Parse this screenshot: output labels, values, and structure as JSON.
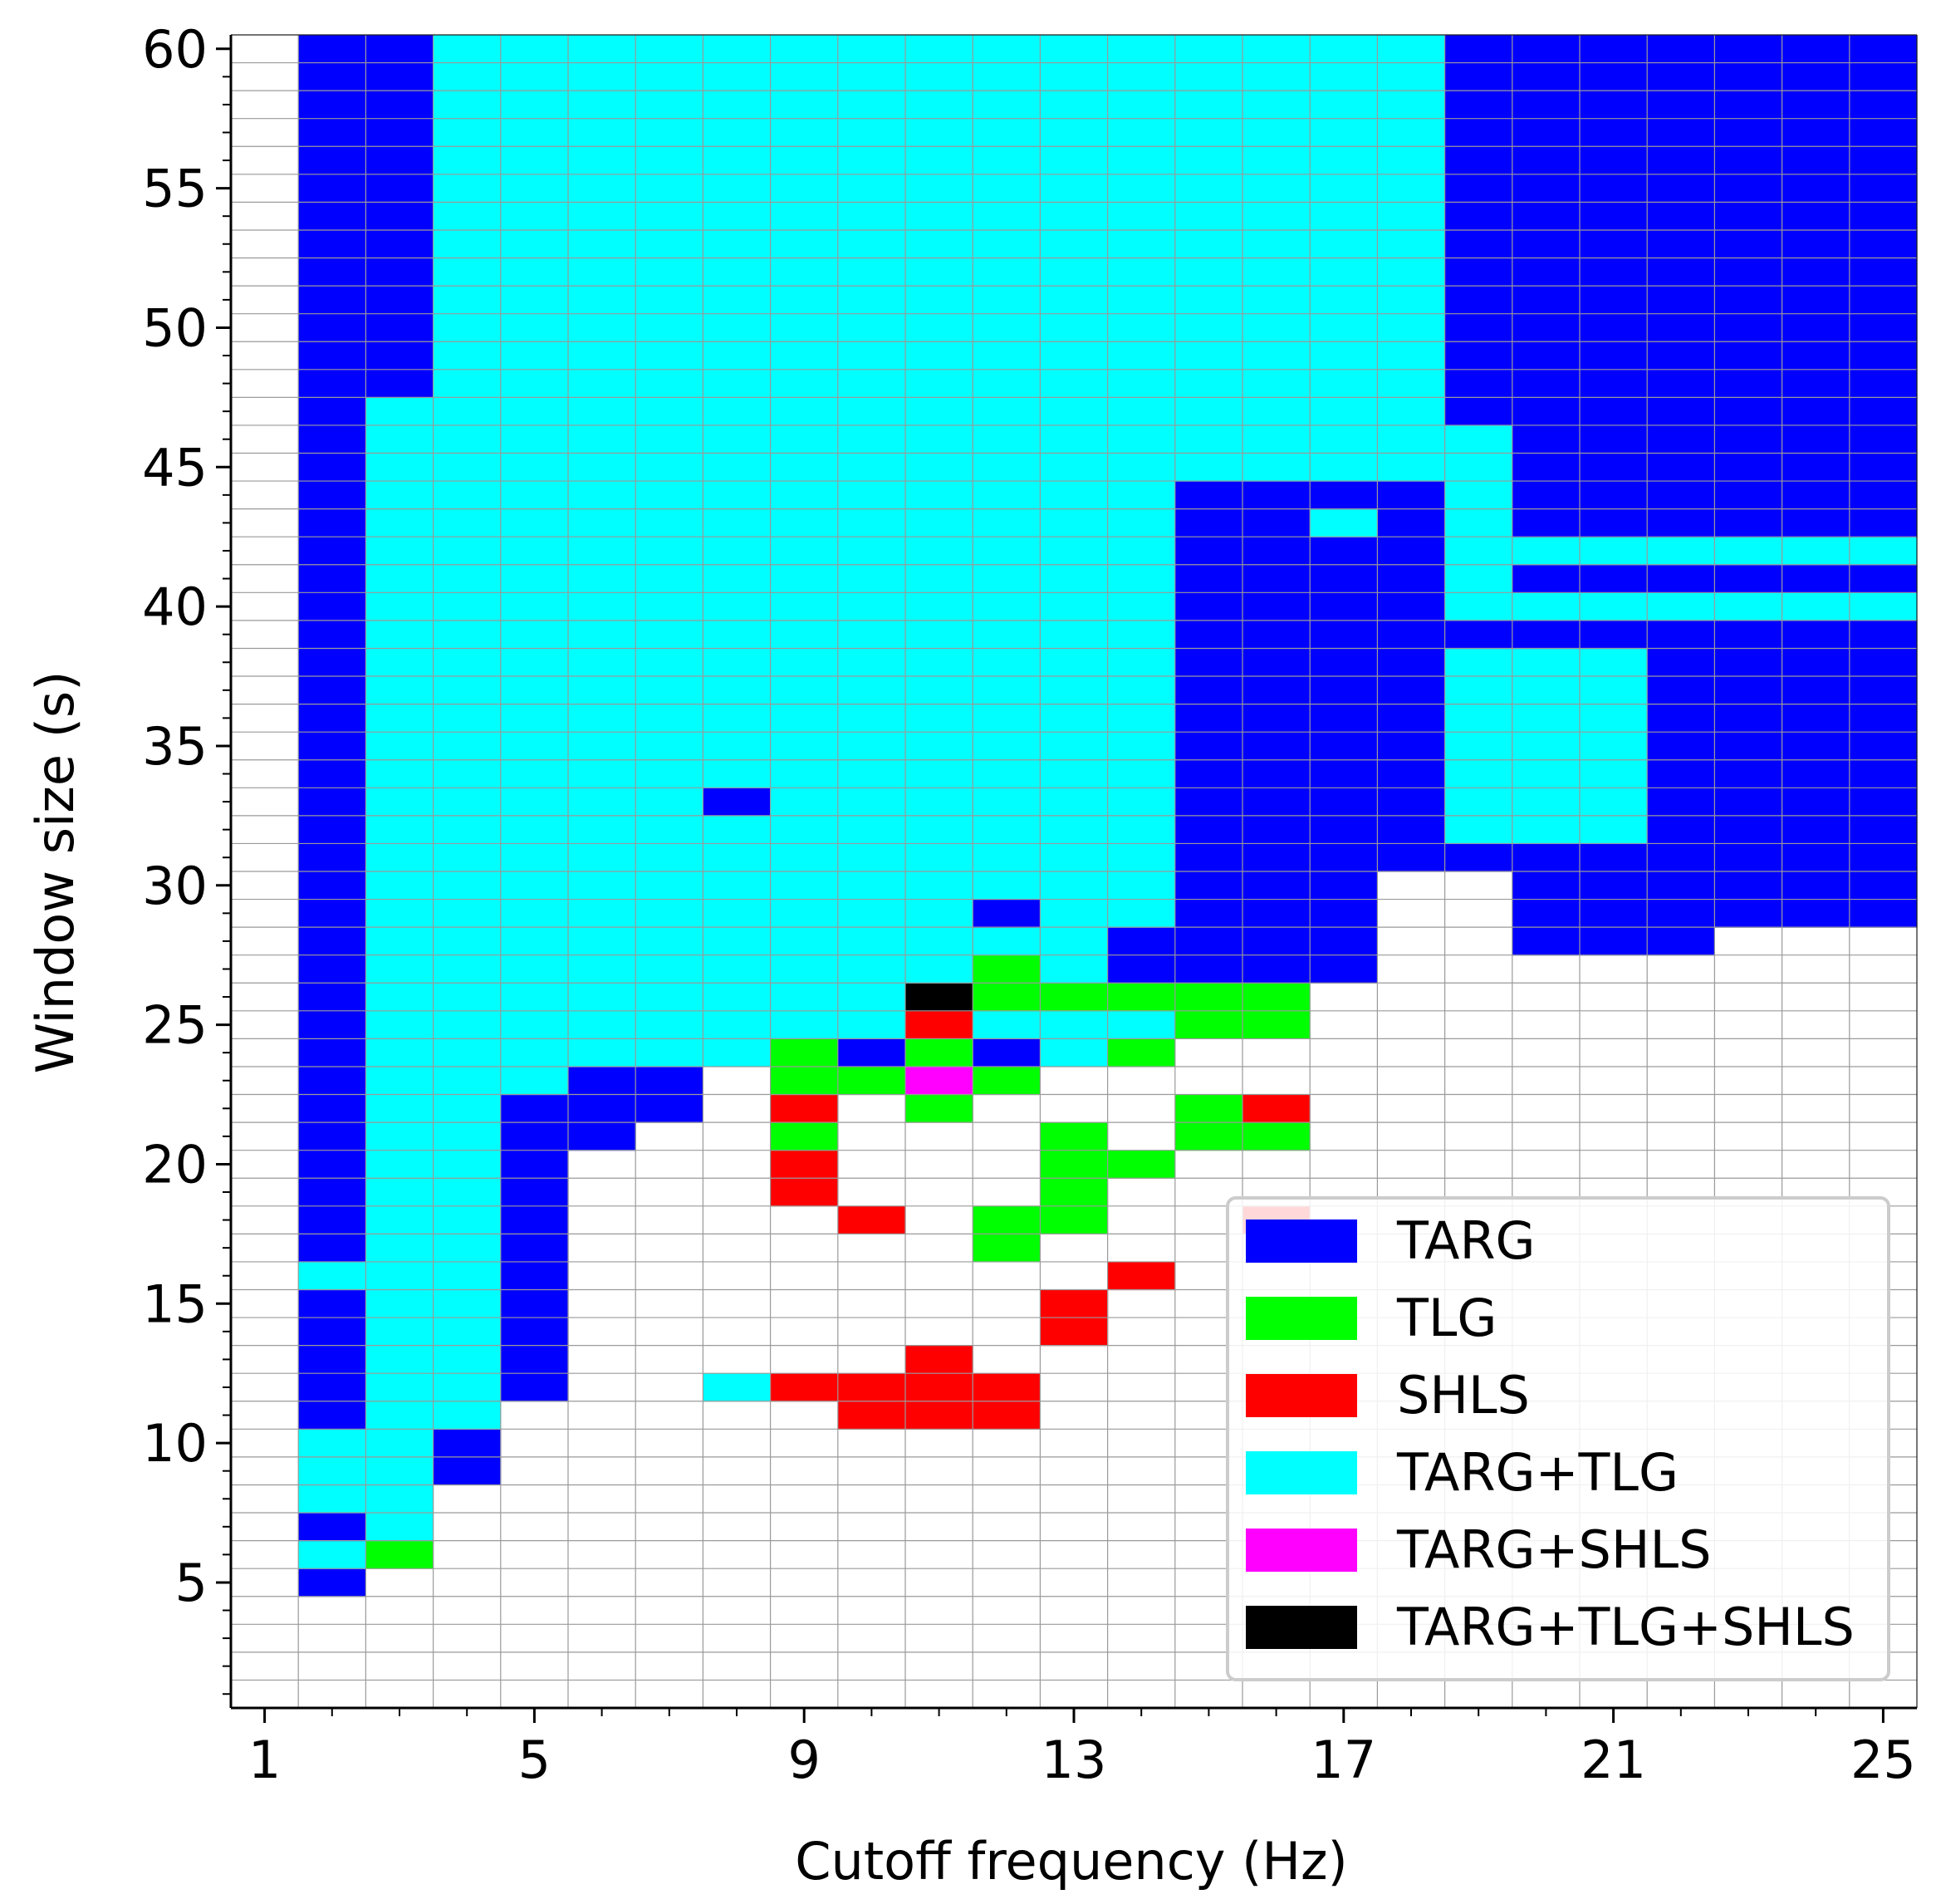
{
  "chart_data": {
    "type": "heatmap",
    "xlabel": "Cutoff frequency (Hz)",
    "ylabel": "Window size (s)",
    "x_ticks": [
      1,
      5,
      9,
      13,
      17,
      21,
      25
    ],
    "y_ticks": [
      5,
      10,
      15,
      20,
      25,
      30,
      35,
      40,
      45,
      50,
      55,
      60
    ],
    "xlim": [
      0.5,
      25.5
    ],
    "ylim": [
      0.5,
      60.5
    ],
    "x_values": [
      1,
      2,
      3,
      4,
      5,
      6,
      7,
      8,
      9,
      10,
      11,
      12,
      13,
      14,
      15,
      16,
      17,
      18,
      19,
      20,
      21,
      22,
      23,
      24,
      25
    ],
    "y_values": "integers 1-60",
    "grid": true,
    "legend_position": "lower-right",
    "categories": [
      {
        "code": 1,
        "label": "TARG",
        "color": "#0000ff"
      },
      {
        "code": 2,
        "label": "TLG",
        "color": "#00ff00"
      },
      {
        "code": 3,
        "label": "SHLS",
        "color": "#ff0000"
      },
      {
        "code": 4,
        "label": "TARG+TLG",
        "color": "#00ffff"
      },
      {
        "code": 5,
        "label": "TARG+SHLS",
        "color": "#ff00ff"
      },
      {
        "code": 6,
        "label": "TARG+TLG+SHLS",
        "color": "#000000"
      }
    ],
    "legend": [
      "TARG",
      "TLG",
      "SHLS",
      "TARG+TLG",
      "TARG+SHLS",
      "TARG+TLG+SHLS"
    ],
    "column_encoding": "one string per cutoff frequency (x = 1..25); character k = window size (k+1) s, i.e. first char is y=1; '0' = no method, digits = category code",
    "columns": [
      "000000000000000000000000000000000000000000000000000000000000",
      "000014144411111411111111111111111111111111111111111111111111",
      "000002444444444444444444444444444444444444444441111111111111",
      "000000001144444444444444444444444444444444444444444444444444",
      "000000000001111111111144444444444444444444444444444444444444",
      "000000000000000000001114444444444444444444444444444444444444",
      "000000000000000000000114444444444444444444444444444444444444",
      "000000000004000000000004444444441444444444444444444444444444",
      "000000000003000000332322444444444444444444444444444444444444",
      "000000000033000003000021444444444444444444444444444444444444",
      "000000000033300000000252364444444444444444444444444444444444",
      "000000000033000022000021422414444444444444444444444444444444",
      "000000000000033002222004424444444444444444444444444444444444",
      "000000000000000300020002421144444444444444444444444444444444",
      "000000000000000000002200221111111111111111114444444444444444",
      "000000000000000003002300221111111111111111114444444444444444",
      "000000000000000000000000001111111111111111414444444444444444",
      "000000000000000000000000000000111111111111114444444444444444",
      "000000000000000000000000000000144444441444444411111111111111",
      "000000000000000000000000000111144444441414111111111111111111",
      "000000000000000000000000000111144444441414111111111111111111",
      "000000000000000000000000000111111111111414111111111111111111",
      "000000000000000000000000000011111111111414111111111111111111",
      "000000000000000000000000000011111111111414111111111111111111",
      "000000000000000000000000000011111111111414111111111111111111"
    ]
  }
}
